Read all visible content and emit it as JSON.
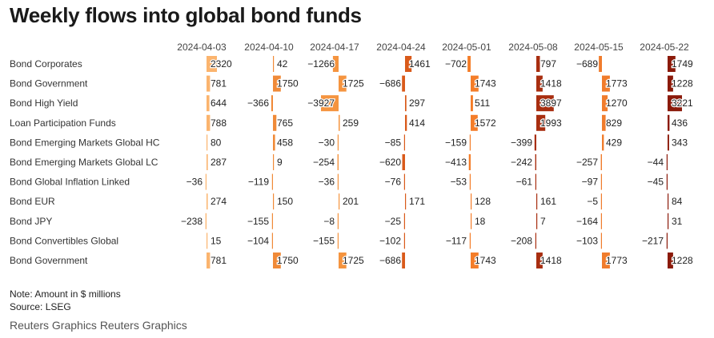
{
  "title": "Weekly flows into global bond funds",
  "note": "Note: Amount in $ millions",
  "source": "Source: LSEG",
  "credit": "Reuters Graphics Reuters Graphics",
  "chart_data": {
    "type": "table",
    "columns": [
      "2024-04-03",
      "2024-04-10",
      "2024-04-17",
      "2024-04-24",
      "2024-05-01",
      "2024-05-08",
      "2024-05-15",
      "2024-05-22"
    ],
    "column_colors": [
      "#fbb46e",
      "#f08a38",
      "#f5943f",
      "#d95a1a",
      "#f47d29",
      "#a82e10",
      "#f07c2c",
      "#8b1a0a"
    ],
    "rows": [
      {
        "label": "Bond Corporates",
        "values": [
          2320,
          42,
          -1266,
          1461,
          -702,
          797,
          -689,
          1749
        ]
      },
      {
        "label": "Bond Government",
        "values": [
          781,
          1750,
          1725,
          -686,
          1743,
          1418,
          1773,
          1228
        ]
      },
      {
        "label": "Bond High Yield",
        "values": [
          644,
          -366,
          -3927,
          297,
          511,
          3897,
          1270,
          3221
        ]
      },
      {
        "label": "Loan Participation Funds",
        "values": [
          788,
          765,
          259,
          414,
          1572,
          1993,
          829,
          436
        ]
      },
      {
        "label": "Bond Emerging Markets Global HC",
        "values": [
          80,
          458,
          -30,
          -85,
          -159,
          -399,
          429,
          343
        ]
      },
      {
        "label": "Bond Emerging Markets Global LC",
        "values": [
          287,
          9,
          -254,
          -620,
          -413,
          -242,
          -257,
          -44
        ]
      },
      {
        "label": "Bond Global Inflation Linked",
        "values": [
          -36,
          -119,
          -36,
          -76,
          -53,
          -61,
          -97,
          -45
        ]
      },
      {
        "label": "Bond EUR",
        "values": [
          274,
          150,
          201,
          171,
          128,
          161,
          -5,
          84
        ]
      },
      {
        "label": "Bond JPY",
        "values": [
          -238,
          -155,
          -8,
          -25,
          18,
          7,
          -164,
          31
        ]
      },
      {
        "label": "Bond Convertibles Global",
        "values": [
          15,
          -104,
          -155,
          -102,
          -117,
          -208,
          -103,
          -217
        ]
      },
      {
        "label": "Bond Government",
        "values": [
          781,
          1750,
          1725,
          -686,
          1743,
          1418,
          1773,
          1228
        ]
      }
    ]
  }
}
